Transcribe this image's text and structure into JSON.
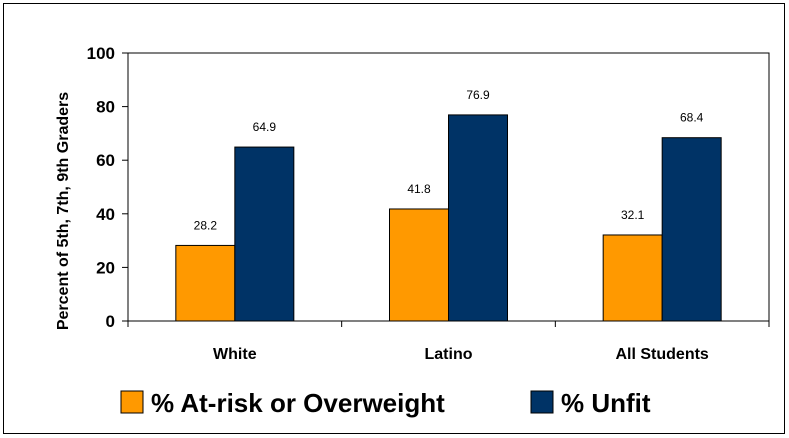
{
  "chart_data": {
    "type": "bar",
    "categories": [
      "White",
      "Latino",
      "All Students"
    ],
    "series": [
      {
        "name": "% At-risk or Overweight",
        "values": [
          28.2,
          41.8,
          32.1
        ],
        "color": "#FF9900"
      },
      {
        "name": "% Unfit",
        "values": [
          64.9,
          76.9,
          68.4
        ],
        "color": "#003366"
      }
    ],
    "title": "",
    "xlabel": "",
    "ylabel": "Percent of 5th, 7th, 9th Graders",
    "ylim": [
      0,
      100
    ],
    "yticks": [
      0,
      20,
      40,
      60,
      80,
      100
    ],
    "grid": false,
    "data_labels": true,
    "legend_position": "bottom"
  }
}
